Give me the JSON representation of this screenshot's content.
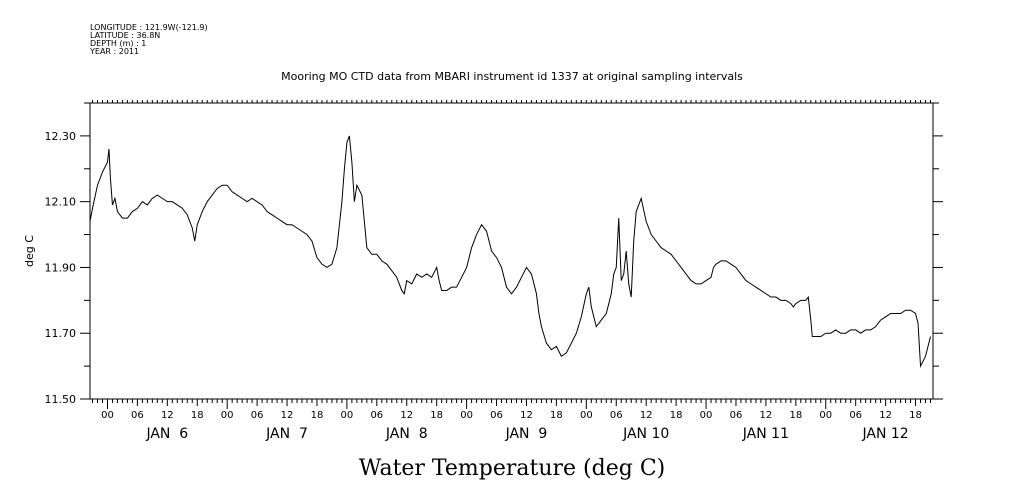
{
  "meta": {
    "longitude": "LONGITUDE : 121.9W(-121.9)",
    "latitude": "LATITUDE : 36.8N",
    "depth": "DEPTH (m) : 1",
    "year": "YEAR : 2011"
  },
  "chart_data": {
    "type": "line",
    "title": "Mooring MO CTD data from MBARI instrument id 1337 at original sampling intervals",
    "xlabel": "Water Temperature (deg C)",
    "ylabel": "deg C",
    "ylim": [
      11.5,
      12.4
    ],
    "yticks": [
      "11.50",
      "11.70",
      "11.90",
      "12.10",
      "12.30"
    ],
    "xlim_hours": [
      -3.5,
      165.5
    ],
    "hour_tick_labels": [
      "00",
      "06",
      "12",
      "18"
    ],
    "day_labels": [
      "JAN  6",
      "JAN  7",
      "JAN  8",
      "JAN  9",
      "JAN 10",
      "JAN 11",
      "JAN 12"
    ],
    "grid": false,
    "line_color": "#000000",
    "series": [
      {
        "values": [
          [
            -3.5,
            12.04
          ],
          [
            -3.0,
            12.08
          ],
          [
            -2.0,
            12.15
          ],
          [
            -1.0,
            12.19
          ],
          [
            0.0,
            12.22
          ],
          [
            0.3,
            12.26
          ],
          [
            0.6,
            12.17
          ],
          [
            1.0,
            12.09
          ],
          [
            1.5,
            12.11
          ],
          [
            2.0,
            12.07
          ],
          [
            3.0,
            12.05
          ],
          [
            4.0,
            12.05
          ],
          [
            5.0,
            12.07
          ],
          [
            6.0,
            12.08
          ],
          [
            7.0,
            12.1
          ],
          [
            8.0,
            12.09
          ],
          [
            9.0,
            12.11
          ],
          [
            10.0,
            12.12
          ],
          [
            11.0,
            12.11
          ],
          [
            12.0,
            12.1
          ],
          [
            13.0,
            12.1
          ],
          [
            14.0,
            12.09
          ],
          [
            15.0,
            12.08
          ],
          [
            16.0,
            12.06
          ],
          [
            17.0,
            12.02
          ],
          [
            17.5,
            11.98
          ],
          [
            18.0,
            12.03
          ],
          [
            19.0,
            12.07
          ],
          [
            20.0,
            12.1
          ],
          [
            21.0,
            12.12
          ],
          [
            22.0,
            12.14
          ],
          [
            23.0,
            12.15
          ],
          [
            24.0,
            12.15
          ],
          [
            25.0,
            12.13
          ],
          [
            26.0,
            12.12
          ],
          [
            27.0,
            12.11
          ],
          [
            28.0,
            12.1
          ],
          [
            29.0,
            12.11
          ],
          [
            30.0,
            12.1
          ],
          [
            31.0,
            12.09
          ],
          [
            32.0,
            12.07
          ],
          [
            33.0,
            12.06
          ],
          [
            34.0,
            12.05
          ],
          [
            35.0,
            12.04
          ],
          [
            36.0,
            12.03
          ],
          [
            37.0,
            12.03
          ],
          [
            38.0,
            12.02
          ],
          [
            39.0,
            12.01
          ],
          [
            40.0,
            12.0
          ],
          [
            41.0,
            11.98
          ],
          [
            42.0,
            11.93
          ],
          [
            43.0,
            11.91
          ],
          [
            44.0,
            11.9
          ],
          [
            45.0,
            11.91
          ],
          [
            46.0,
            11.96
          ],
          [
            47.0,
            12.1
          ],
          [
            47.5,
            12.2
          ],
          [
            48.0,
            12.28
          ],
          [
            48.5,
            12.3
          ],
          [
            49.0,
            12.22
          ],
          [
            49.5,
            12.1
          ],
          [
            50.0,
            12.15
          ],
          [
            51.0,
            12.12
          ],
          [
            52.0,
            11.96
          ],
          [
            53.0,
            11.94
          ],
          [
            54.0,
            11.94
          ],
          [
            55.0,
            11.92
          ],
          [
            56.0,
            11.91
          ],
          [
            57.0,
            11.89
          ],
          [
            58.0,
            11.87
          ],
          [
            59.0,
            11.83
          ],
          [
            59.5,
            11.82
          ],
          [
            60.0,
            11.86
          ],
          [
            61.0,
            11.85
          ],
          [
            62.0,
            11.88
          ],
          [
            63.0,
            11.87
          ],
          [
            64.0,
            11.88
          ],
          [
            65.0,
            11.87
          ],
          [
            66.0,
            11.9
          ],
          [
            66.5,
            11.86
          ],
          [
            67.0,
            11.83
          ],
          [
            68.0,
            11.83
          ],
          [
            69.0,
            11.84
          ],
          [
            70.0,
            11.84
          ],
          [
            71.0,
            11.87
          ],
          [
            72.0,
            11.9
          ],
          [
            73.0,
            11.96
          ],
          [
            74.0,
            12.0
          ],
          [
            75.0,
            12.03
          ],
          [
            76.0,
            12.01
          ],
          [
            77.0,
            11.95
          ],
          [
            78.0,
            11.93
          ],
          [
            79.0,
            11.9
          ],
          [
            80.0,
            11.84
          ],
          [
            81.0,
            11.82
          ],
          [
            82.0,
            11.84
          ],
          [
            83.0,
            11.87
          ],
          [
            84.0,
            11.9
          ],
          [
            85.0,
            11.88
          ],
          [
            86.0,
            11.82
          ],
          [
            86.5,
            11.76
          ],
          [
            87.0,
            11.72
          ],
          [
            88.0,
            11.67
          ],
          [
            89.0,
            11.65
          ],
          [
            90.0,
            11.66
          ],
          [
            91.0,
            11.63
          ],
          [
            92.0,
            11.64
          ],
          [
            93.0,
            11.67
          ],
          [
            94.0,
            11.7
          ],
          [
            95.0,
            11.75
          ],
          [
            96.0,
            11.82
          ],
          [
            96.5,
            11.84
          ],
          [
            97.0,
            11.78
          ],
          [
            98.0,
            11.72
          ],
          [
            99.0,
            11.74
          ],
          [
            100.0,
            11.76
          ],
          [
            101.0,
            11.82
          ],
          [
            101.5,
            11.88
          ],
          [
            102.0,
            11.9
          ],
          [
            102.5,
            12.05
          ],
          [
            103.0,
            11.86
          ],
          [
            103.5,
            11.88
          ],
          [
            104.0,
            11.95
          ],
          [
            104.5,
            11.85
          ],
          [
            105.0,
            11.81
          ],
          [
            105.5,
            11.98
          ],
          [
            106.0,
            12.07
          ],
          [
            107.0,
            12.11
          ],
          [
            108.0,
            12.04
          ],
          [
            109.0,
            12.0
          ],
          [
            110.0,
            11.98
          ],
          [
            111.0,
            11.96
          ],
          [
            112.0,
            11.95
          ],
          [
            113.0,
            11.94
          ],
          [
            114.0,
            11.92
          ],
          [
            115.0,
            11.9
          ],
          [
            116.0,
            11.88
          ],
          [
            117.0,
            11.86
          ],
          [
            118.0,
            11.85
          ],
          [
            119.0,
            11.85
          ],
          [
            120.0,
            11.86
          ],
          [
            121.0,
            11.87
          ],
          [
            121.5,
            11.9
          ],
          [
            122.0,
            11.91
          ],
          [
            123.0,
            11.92
          ],
          [
            124.0,
            11.92
          ],
          [
            125.0,
            11.91
          ],
          [
            126.0,
            11.9
          ],
          [
            127.0,
            11.88
          ],
          [
            128.0,
            11.86
          ],
          [
            129.0,
            11.85
          ],
          [
            130.0,
            11.84
          ],
          [
            131.0,
            11.83
          ],
          [
            132.0,
            11.82
          ],
          [
            133.0,
            11.81
          ],
          [
            134.0,
            11.81
          ],
          [
            135.0,
            11.8
          ],
          [
            136.0,
            11.8
          ],
          [
            137.0,
            11.79
          ],
          [
            137.5,
            11.78
          ],
          [
            138.0,
            11.79
          ],
          [
            139.0,
            11.8
          ],
          [
            140.0,
            11.8
          ],
          [
            140.5,
            11.81
          ],
          [
            141.0,
            11.74
          ],
          [
            141.3,
            11.69
          ],
          [
            142.0,
            11.69
          ],
          [
            143.0,
            11.69
          ],
          [
            144.0,
            11.7
          ],
          [
            145.0,
            11.7
          ],
          [
            146.0,
            11.71
          ],
          [
            147.0,
            11.7
          ],
          [
            148.0,
            11.7
          ],
          [
            149.0,
            11.71
          ],
          [
            150.0,
            11.71
          ],
          [
            151.0,
            11.7
          ],
          [
            152.0,
            11.71
          ],
          [
            153.0,
            11.71
          ],
          [
            154.0,
            11.72
          ],
          [
            155.0,
            11.74
          ],
          [
            156.0,
            11.75
          ],
          [
            157.0,
            11.76
          ],
          [
            158.0,
            11.76
          ],
          [
            159.0,
            11.76
          ],
          [
            160.0,
            11.77
          ],
          [
            161.0,
            11.77
          ],
          [
            162.0,
            11.76
          ],
          [
            162.5,
            11.73
          ],
          [
            163.0,
            11.6
          ],
          [
            164.0,
            11.63
          ],
          [
            165.0,
            11.69
          ]
        ]
      }
    ]
  }
}
